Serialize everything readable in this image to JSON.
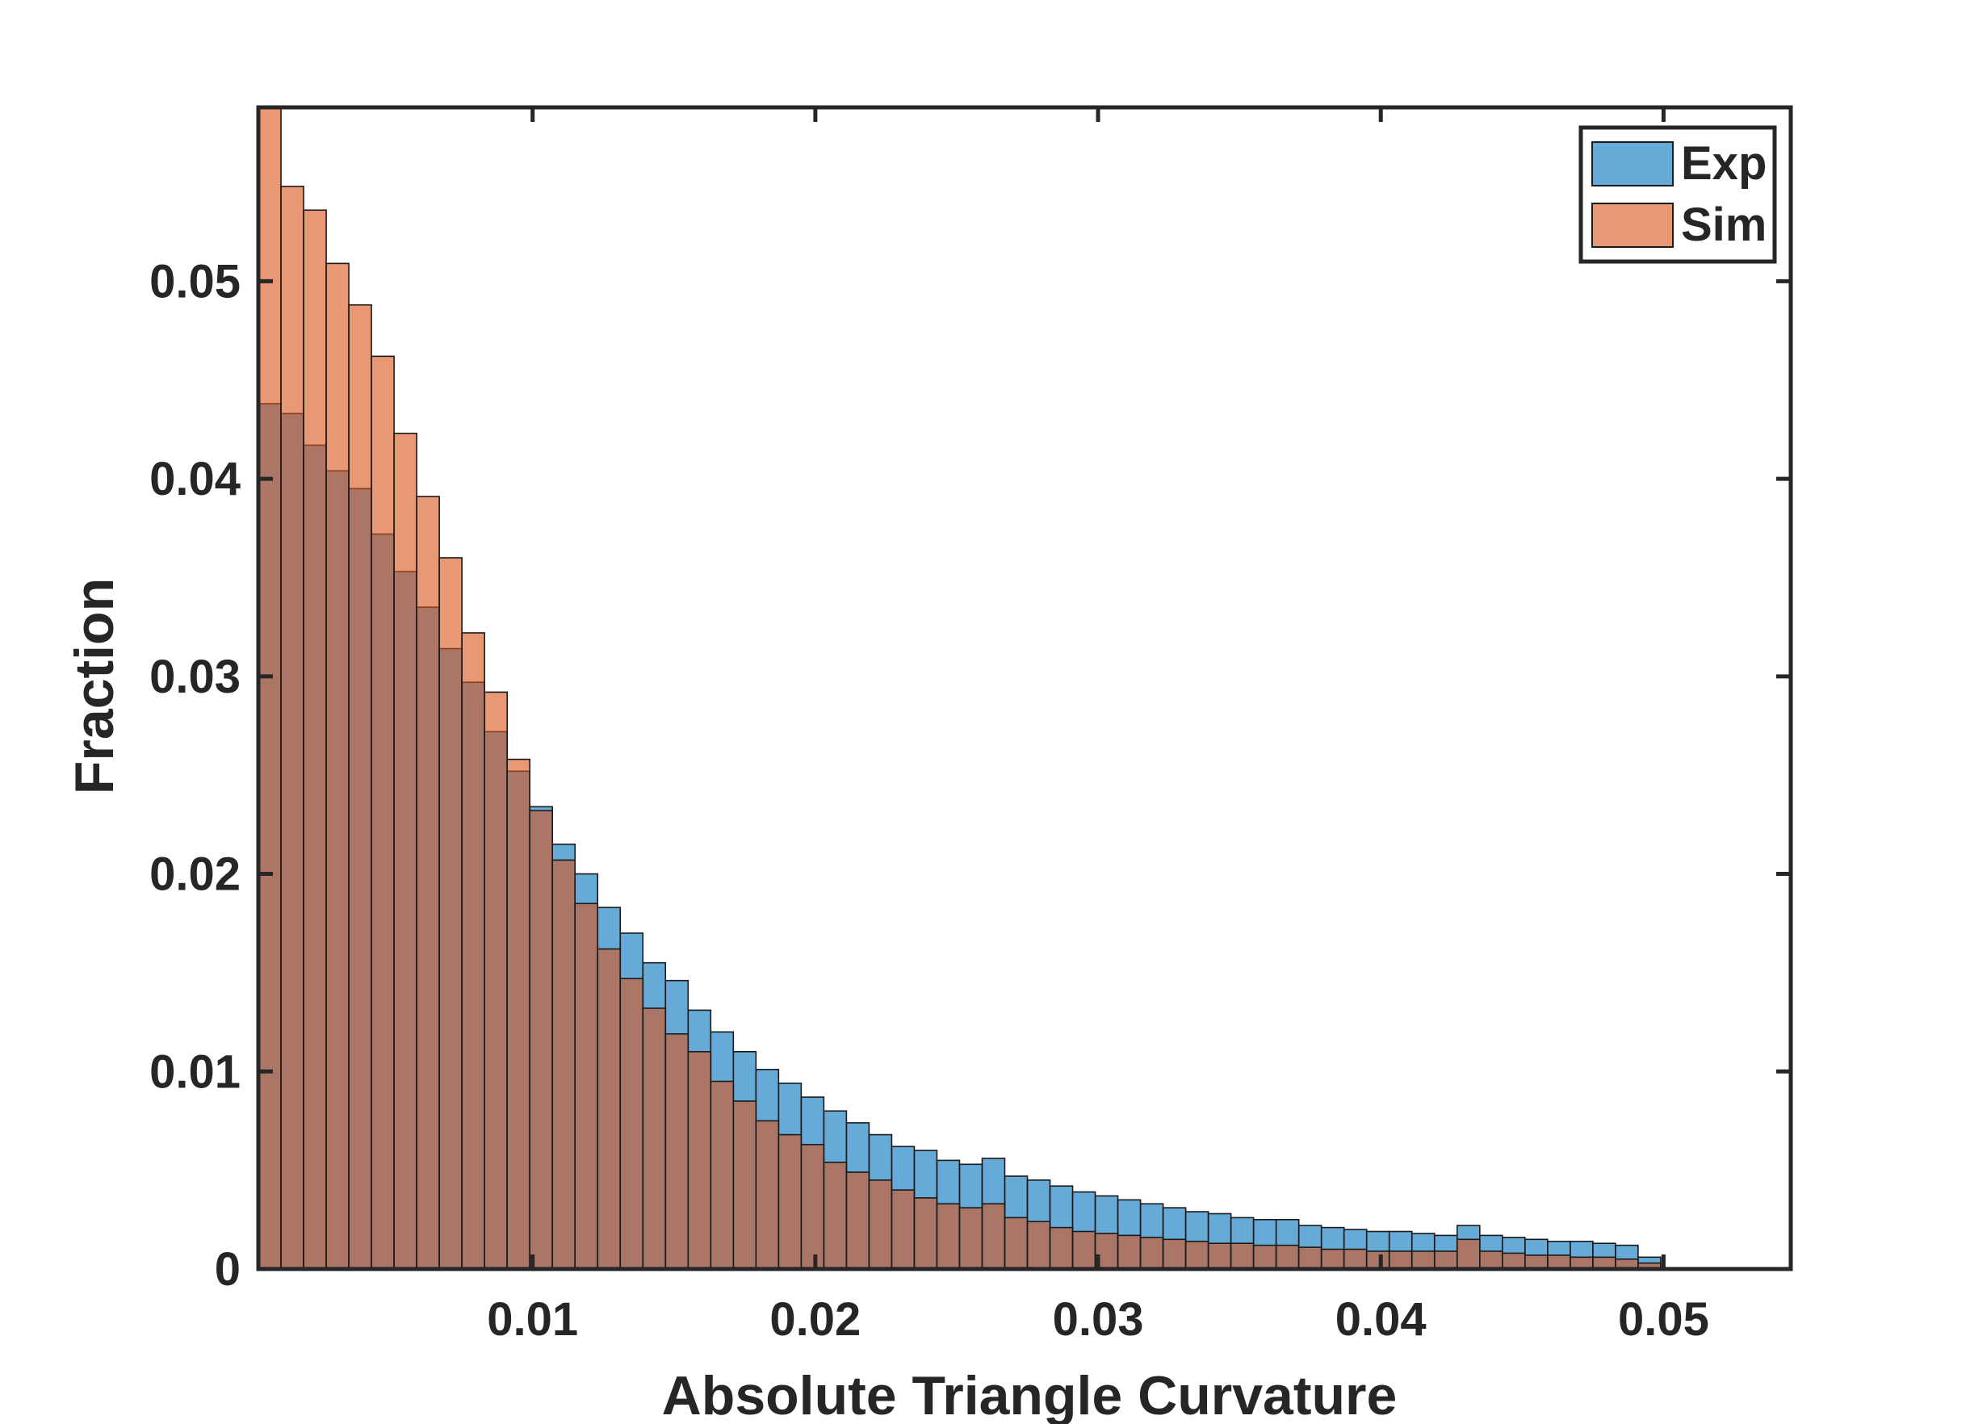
{
  "chart_data": {
    "type": "bar",
    "subtype": "overlaid-histogram",
    "xlabel": "Absolute Triangle Curvature",
    "ylabel": "Fraction",
    "xlim": [
      0.0003,
      0.0545
    ],
    "ylim": [
      0,
      0.0588
    ],
    "xticks": [
      0.01,
      0.02,
      0.03,
      0.04,
      0.05
    ],
    "xtick_labels": [
      "0.01",
      "0.02",
      "0.03",
      "0.04",
      "0.05"
    ],
    "yticks": [
      0,
      0.01,
      0.02,
      0.03,
      0.04,
      0.05
    ],
    "ytick_labels": [
      "0",
      "0.01",
      "0.02",
      "0.03",
      "0.04",
      "0.05"
    ],
    "grid": false,
    "legend_position": "top-right",
    "bin_edges_start": 0.0003,
    "bin_width": 0.0008,
    "series": [
      {
        "name": "Exp",
        "color": "#0072bd",
        "values": [
          0.0438,
          0.0433,
          0.0417,
          0.0404,
          0.0395,
          0.0372,
          0.0353,
          0.0335,
          0.0314,
          0.0297,
          0.0272,
          0.0252,
          0.0234,
          0.0215,
          0.02,
          0.0183,
          0.017,
          0.0155,
          0.0146,
          0.0131,
          0.012,
          0.011,
          0.0101,
          0.0094,
          0.0087,
          0.008,
          0.0074,
          0.0068,
          0.0062,
          0.006,
          0.0055,
          0.0053,
          0.0056,
          0.0047,
          0.0045,
          0.0042,
          0.0039,
          0.0037,
          0.0035,
          0.0033,
          0.0031,
          0.0029,
          0.0028,
          0.0026,
          0.0025,
          0.0025,
          0.0022,
          0.0021,
          0.002,
          0.0019,
          0.0019,
          0.0018,
          0.0017,
          0.0022,
          0.0017,
          0.0016,
          0.0015,
          0.0014,
          0.0014,
          0.0013,
          0.0012,
          0.0006
        ]
      },
      {
        "name": "Sim",
        "color": "#d95319",
        "values": [
          0.06,
          0.0548,
          0.0536,
          0.0509,
          0.0488,
          0.0462,
          0.0423,
          0.0391,
          0.036,
          0.0322,
          0.0292,
          0.0258,
          0.0232,
          0.0207,
          0.0185,
          0.0162,
          0.0147,
          0.0132,
          0.0119,
          0.011,
          0.0095,
          0.0085,
          0.0075,
          0.0068,
          0.0063,
          0.0054,
          0.0049,
          0.0045,
          0.004,
          0.0036,
          0.0033,
          0.0031,
          0.0033,
          0.0026,
          0.0024,
          0.0021,
          0.0019,
          0.0018,
          0.0017,
          0.0016,
          0.0015,
          0.0014,
          0.0013,
          0.0013,
          0.0012,
          0.0012,
          0.0011,
          0.001,
          0.001,
          0.0009,
          0.0009,
          0.0009,
          0.0009,
          0.0015,
          0.0009,
          0.0008,
          0.0007,
          0.0007,
          0.0006,
          0.0006,
          0.0005,
          0.0003
        ]
      }
    ]
  }
}
